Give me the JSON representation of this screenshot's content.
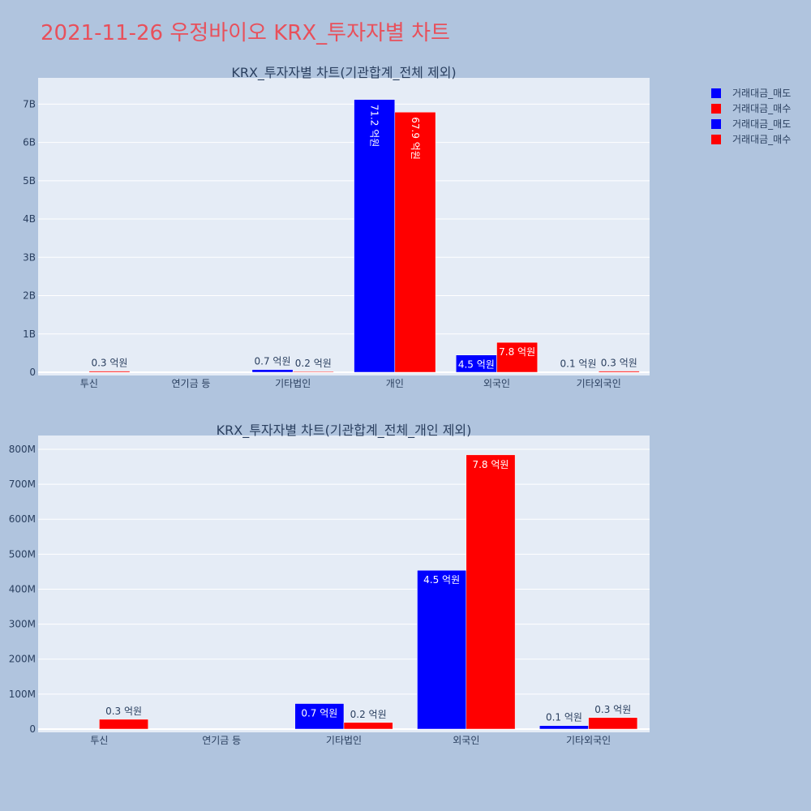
{
  "title": "2021-11-26 우정바이오 KRX_투자자별 차트",
  "colors": {
    "background": "#b0c4de",
    "plot_bg": "#e5ecf6",
    "title": "#e8505b",
    "sell": "#0000ff",
    "buy": "#ff0000",
    "text": "#2a3f5f"
  },
  "legend": {
    "placement": "top-right",
    "entries": [
      {
        "label": "거래대금_매도",
        "color": "#0000ff"
      },
      {
        "label": "거래대금_매수",
        "color": "#ff0000"
      },
      {
        "label": "거래대금_매도",
        "color": "#0000ff"
      },
      {
        "label": "거래대금_매수",
        "color": "#ff0000"
      }
    ]
  },
  "chart_data": [
    {
      "type": "bar",
      "title": "KRX_투자자별 차트(기관합계_전체 제외)",
      "categories": [
        "투신",
        "연기금 등",
        "기타법인",
        "개인",
        "외국인",
        "기타외국인"
      ],
      "ylim": [
        0,
        7600000000
      ],
      "yticks": [
        {
          "value": 0,
          "label": "0"
        },
        {
          "value": 1000000000,
          "label": "1B"
        },
        {
          "value": 2000000000,
          "label": "2B"
        },
        {
          "value": 3000000000,
          "label": "3B"
        },
        {
          "value": 4000000000,
          "label": "4B"
        },
        {
          "value": 5000000000,
          "label": "5B"
        },
        {
          "value": 6000000000,
          "label": "6B"
        },
        {
          "value": 7000000000,
          "label": "7B"
        }
      ],
      "grid": true,
      "series": [
        {
          "name": "거래대금_매도",
          "color": "#0000ff",
          "values": [
            0,
            0,
            70000000,
            7120000000,
            450000000,
            10000000
          ],
          "labels": [
            "",
            "",
            "0.7 억원",
            "71.2 억원",
            "4.5 억원",
            "0.1 억원"
          ]
        },
        {
          "name": "거래대금_매수",
          "color": "#ff0000",
          "values": [
            30000000,
            0,
            20000000,
            6790000000,
            780000000,
            30000000
          ],
          "labels": [
            "0.3 억원",
            "",
            "0.2 억원",
            "67.9 억원",
            "7.8 억원",
            "0.3 억원"
          ]
        }
      ]
    },
    {
      "type": "bar",
      "title": "KRX_투자자별 차트(기관합계_전체_개인 제외)",
      "categories": [
        "투신",
        "연기금 등",
        "기타법인",
        "외국인",
        "기타외국인"
      ],
      "ylim": [
        0,
        830000000
      ],
      "yticks": [
        {
          "value": 0,
          "label": "0"
        },
        {
          "value": 100000000,
          "label": "100M"
        },
        {
          "value": 200000000,
          "label": "200M"
        },
        {
          "value": 300000000,
          "label": "300M"
        },
        {
          "value": 400000000,
          "label": "400M"
        },
        {
          "value": 500000000,
          "label": "500M"
        },
        {
          "value": 600000000,
          "label": "600M"
        },
        {
          "value": 700000000,
          "label": "700M"
        },
        {
          "value": 800000000,
          "label": "800M"
        }
      ],
      "grid": true,
      "series": [
        {
          "name": "거래대금_매도",
          "color": "#0000ff",
          "values": [
            0,
            0,
            73000000,
            454000000,
            10000000
          ],
          "labels": [
            "",
            "",
            "0.7 억원",
            "4.5 억원",
            "0.1 억원"
          ]
        },
        {
          "name": "거래대금_매수",
          "color": "#ff0000",
          "values": [
            28000000,
            0,
            19000000,
            784000000,
            33000000
          ],
          "labels": [
            "0.3 억원",
            "",
            "0.2 억원",
            "7.8 억원",
            "0.3 억원"
          ]
        }
      ]
    }
  ]
}
